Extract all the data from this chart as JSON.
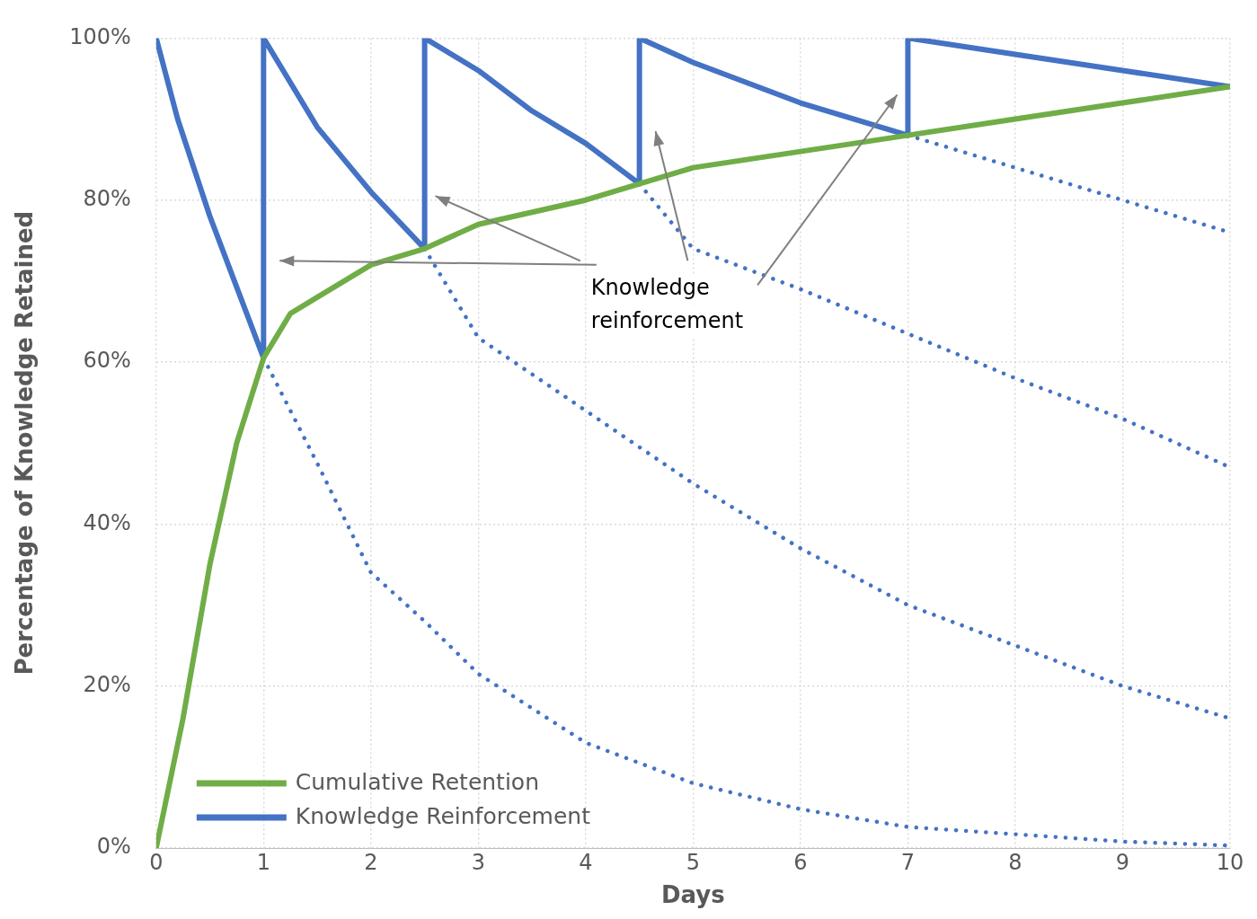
{
  "chart_data": {
    "type": "line",
    "xlabel": "Days",
    "ylabel": "Percentage of Knowledge Retained",
    "xlim": [
      0,
      10
    ],
    "xticks": [
      0,
      1,
      2,
      3,
      4,
      5,
      6,
      7,
      8,
      9,
      10
    ],
    "ylim": [
      0,
      100
    ],
    "yticks": [
      {
        "value": 0,
        "label": "0%"
      },
      {
        "value": 20,
        "label": "20%"
      },
      {
        "value": 40,
        "label": "40%"
      },
      {
        "value": 60,
        "label": "60%"
      },
      {
        "value": 80,
        "label": "80%"
      },
      {
        "value": 100,
        "label": "100%"
      }
    ],
    "grid": true,
    "legend": "bottom left",
    "marker": "none",
    "annotations": [
      "Knowledge reinforcement"
    ],
    "series": [
      {
        "name": "Cumulative Retention",
        "color": "#70ad47",
        "x": [
          0,
          0.25,
          0.5,
          0.75,
          1,
          1.25,
          1.5,
          2,
          2.5,
          3,
          4,
          4.5,
          5,
          6,
          7,
          8,
          9,
          10
        ],
        "values": [
          0,
          16,
          35,
          50,
          60.5,
          66,
          68,
          72,
          74,
          77,
          80,
          82,
          84,
          86,
          88,
          90,
          92,
          94
        ]
      },
      {
        "name": "Knowledge Reinforcement",
        "color": "#4472c4",
        "x": [
          0,
          0.2,
          0.5,
          1,
          1,
          1.5,
          2,
          2.5,
          2.5,
          3,
          3.5,
          4,
          4.5,
          4.5,
          5,
          6,
          7,
          7,
          8,
          9,
          10
        ],
        "values": [
          100,
          90,
          78,
          60.5,
          100,
          89,
          81,
          74,
          100,
          96,
          91,
          87,
          82,
          100,
          97,
          92,
          88,
          100,
          98,
          96,
          94
        ]
      },
      {
        "color": "#4472c4",
        "line_style": "dotted",
        "x": [
          1,
          1.5,
          2,
          2.5,
          3,
          4,
          5,
          6,
          7,
          8,
          9,
          10
        ],
        "values": [
          60.5,
          47.5,
          34,
          28,
          21.5,
          13,
          8,
          4.8,
          2.6,
          1.7,
          0.8,
          0.3
        ]
      },
      {
        "color": "#4472c4",
        "line_style": "dotted",
        "x": [
          2.5,
          3,
          4,
          5,
          6,
          7,
          8,
          9,
          10
        ],
        "values": [
          74,
          63,
          54,
          45,
          37,
          30,
          25,
          20,
          16
        ]
      },
      {
        "color": "#4472c4",
        "line_style": "dotted",
        "x": [
          4.5,
          5,
          6,
          7,
          8,
          9,
          10
        ],
        "values": [
          82,
          74,
          69,
          63.5,
          58,
          53,
          47
        ]
      },
      {
        "color": "#4472c4",
        "line_style": "dotted",
        "x": [
          7,
          8,
          9,
          10
        ],
        "values": [
          88,
          84,
          80,
          76
        ]
      }
    ]
  }
}
